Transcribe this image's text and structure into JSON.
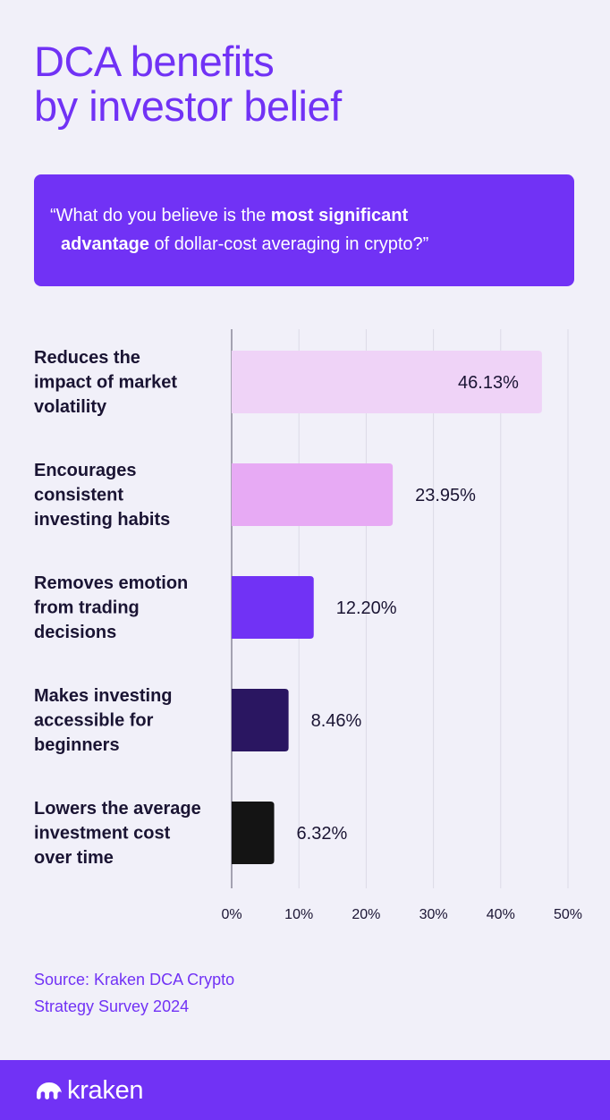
{
  "title": {
    "line1": "DCA benefits",
    "line2": "by investor belief"
  },
  "question": {
    "open": "“What do you believe is the ",
    "bold1": "most significant",
    "bold2": "advantage",
    "rest": " of dollar-cost averaging in crypto?”"
  },
  "colors": {
    "background": "#f1f0f9",
    "accent": "#7132f5",
    "title_text": "#7132f5",
    "dark_text": "#1a1433",
    "grid": "#dcdae6",
    "axis": "#8a8799"
  },
  "chart_data": {
    "type": "bar",
    "orientation": "horizontal",
    "categories": [
      [
        "Reduces the",
        "impact of market",
        "volatility"
      ],
      [
        "Encourages",
        "consistent",
        "investing habits"
      ],
      [
        "Removes emotion",
        "from trading",
        "decisions"
      ],
      [
        "Makes investing",
        "accessible for",
        "beginners"
      ],
      [
        "Lowers the average",
        "investment cost",
        "over time"
      ]
    ],
    "values": [
      46.13,
      23.95,
      12.2,
      8.46,
      6.32
    ],
    "value_labels": [
      "46.13%",
      "23.95%",
      "12.20%",
      "8.46%",
      "6.32%"
    ],
    "bar_colors": [
      "#efd3f7",
      "#e7aaf4",
      "#7132f5",
      "#2a1661",
      "#141414"
    ],
    "xlim": [
      0,
      50
    ],
    "xticks": [
      0,
      10,
      20,
      30,
      40,
      50
    ],
    "xtick_labels": [
      "0%",
      "10%",
      "20%",
      "30%",
      "40%",
      "50%"
    ],
    "grid": true,
    "legend": "none"
  },
  "source": {
    "line1": "Source: Kraken DCA Crypto",
    "line2": "Strategy Survey 2024"
  },
  "footer": {
    "logo_text": "kraken",
    "logo_icon": "kraken-logo-icon"
  }
}
